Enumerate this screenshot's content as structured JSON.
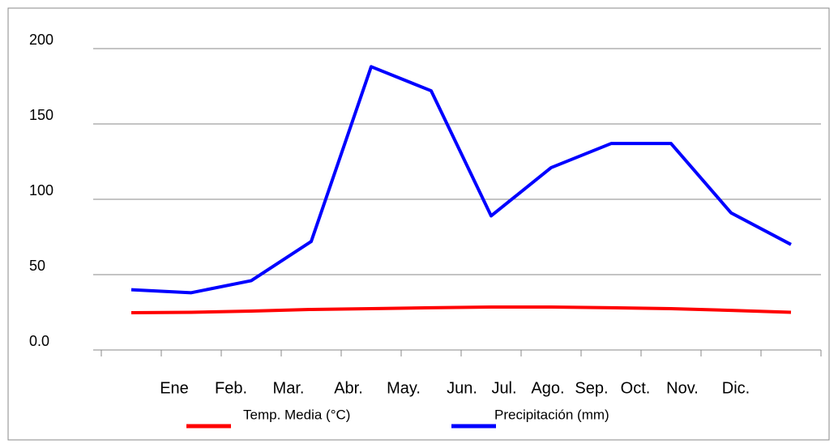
{
  "chart_data": {
    "type": "line",
    "categories": [
      "Ene",
      "Feb.",
      "Mar.",
      "Abr.",
      "May.",
      "Jun.",
      "Jul.",
      "Ago.",
      "Sep.",
      "Oct.",
      "Nov.",
      "Dic."
    ],
    "series": [
      {
        "name": "Temp. Media (°C)",
        "color": "#ff0000",
        "values": [
          24.7,
          25,
          25.8,
          26.9,
          27.4,
          28,
          28.5,
          28.5,
          28,
          27.4,
          26.3,
          25
        ]
      },
      {
        "name": "Precipitación (mm)",
        "color": "#0000ff",
        "values": [
          40,
          38,
          46,
          72,
          188,
          172,
          89,
          121,
          137,
          137,
          91,
          70
        ]
      }
    ],
    "ylim": [
      0,
      200
    ],
    "yticks": [
      {
        "value": 0,
        "label": "0.0"
      },
      50,
      100,
      150,
      200
    ],
    "grid": true
  }
}
